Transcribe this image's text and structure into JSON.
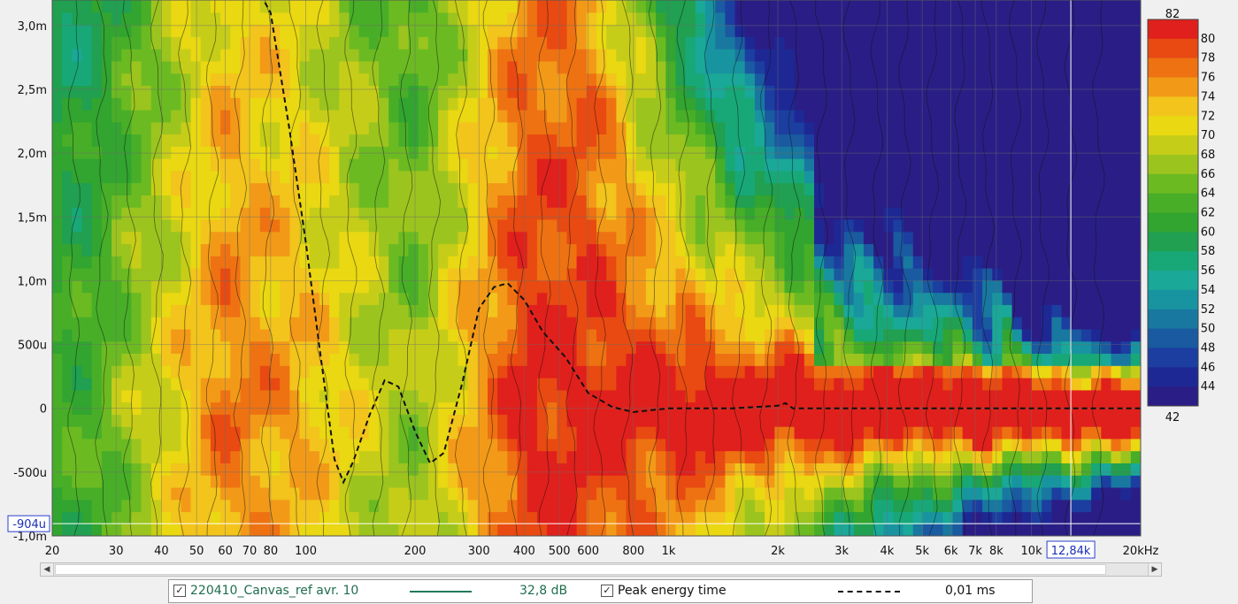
{
  "chart_data": {
    "type": "heatmap",
    "x_scale": "log",
    "xlim": [
      20,
      20000
    ],
    "ylim": [
      -0.001,
      0.0032
    ],
    "x_ticks": [
      {
        "v": 20,
        "label": "20"
      },
      {
        "v": 30,
        "label": "30"
      },
      {
        "v": 40,
        "label": "40"
      },
      {
        "v": 50,
        "label": "50"
      },
      {
        "v": 60,
        "label": "60"
      },
      {
        "v": 70,
        "label": "70"
      },
      {
        "v": 80,
        "label": "80"
      },
      {
        "v": 100,
        "label": "100"
      },
      {
        "v": 200,
        "label": "200"
      },
      {
        "v": 300,
        "label": "300"
      },
      {
        "v": 400,
        "label": "400"
      },
      {
        "v": 500,
        "label": "500"
      },
      {
        "v": 600,
        "label": "600"
      },
      {
        "v": 800,
        "label": "800"
      },
      {
        "v": 1000,
        "label": "1k"
      },
      {
        "v": 2000,
        "label": "2k"
      },
      {
        "v": 3000,
        "label": "3k"
      },
      {
        "v": 4000,
        "label": "4k"
      },
      {
        "v": 5000,
        "label": "5k"
      },
      {
        "v": 6000,
        "label": "6k"
      },
      {
        "v": 7000,
        "label": "7k"
      },
      {
        "v": 8000,
        "label": "8k"
      },
      {
        "v": 10000,
        "label": "10k"
      },
      {
        "v": 20000,
        "label": "20kHz"
      }
    ],
    "y_ticks": [
      {
        "v": 0.003,
        "label": "3,0m"
      },
      {
        "v": 0.0025,
        "label": "2,5m"
      },
      {
        "v": 0.002,
        "label": "2,0m"
      },
      {
        "v": 0.0015,
        "label": "1,5m"
      },
      {
        "v": 0.001,
        "label": "1,0m"
      },
      {
        "v": 0.0005,
        "label": "500u"
      },
      {
        "v": 0,
        "label": "0"
      },
      {
        "v": -0.0005,
        "label": "-500u"
      },
      {
        "v": -0.001,
        "label": "-1,0m"
      }
    ],
    "cursor": {
      "x": 12840,
      "x_label": "12,84k",
      "y": -0.000904,
      "y_label": "-904u"
    },
    "color_scale": {
      "min": 42,
      "max": 82,
      "step": 2,
      "labels": [
        "82",
        "80",
        "78",
        "76",
        "74",
        "72",
        "70",
        "68",
        "66",
        "64",
        "62",
        "60",
        "58",
        "56",
        "54",
        "52",
        "50",
        "48",
        "46",
        "44",
        "42"
      ],
      "colors": [
        "#e0201c",
        "#e84a12",
        "#ee7212",
        "#f29a18",
        "#f2c41c",
        "#e9d812",
        "#c6cd18",
        "#9cc41e",
        "#6cba22",
        "#48ae28",
        "#32a430",
        "#20a050",
        "#18a878",
        "#1aa898",
        "#1894a0",
        "#1878a0",
        "#1a5aa0",
        "#1c3ea0",
        "#1e2894",
        "#2a1e86"
      ]
    },
    "peak_energy_time": [
      [
        40,
        0.0036
      ],
      [
        70,
        0.0034
      ],
      [
        80,
        0.0031
      ],
      [
        90,
        0.0022
      ],
      [
        100,
        0.0013
      ],
      [
        110,
        0.0004
      ],
      [
        120,
        -0.0004
      ],
      [
        127,
        -0.00058
      ],
      [
        135,
        -0.00042
      ],
      [
        150,
        -5e-05
      ],
      [
        165,
        0.00022
      ],
      [
        180,
        0.00017
      ],
      [
        200,
        -0.00018
      ],
      [
        220,
        -0.00043
      ],
      [
        240,
        -0.00035
      ],
      [
        270,
        0.0002
      ],
      [
        300,
        0.00078
      ],
      [
        330,
        0.00095
      ],
      [
        360,
        0.00098
      ],
      [
        400,
        0.00085
      ],
      [
        450,
        0.0006
      ],
      [
        520,
        0.0004
      ],
      [
        600,
        0.00012
      ],
      [
        700,
        1e-05
      ],
      [
        800,
        -3e-05
      ],
      [
        1000,
        0.0
      ],
      [
        1500,
        0.0
      ],
      [
        2000,
        2e-05
      ],
      [
        2100,
        4e-05
      ],
      [
        2200,
        0.0
      ],
      [
        5000,
        0.0
      ],
      [
        20000,
        0.0
      ]
    ],
    "legend": [
      {
        "name": "220410_Canvas_ref avr. 10",
        "value": "32,8 dB",
        "style": "solid",
        "color": "#1f7a5a"
      },
      {
        "name": "Peak energy time",
        "value": "0,01 ms",
        "style": "dashed",
        "color": "#111111"
      }
    ]
  }
}
